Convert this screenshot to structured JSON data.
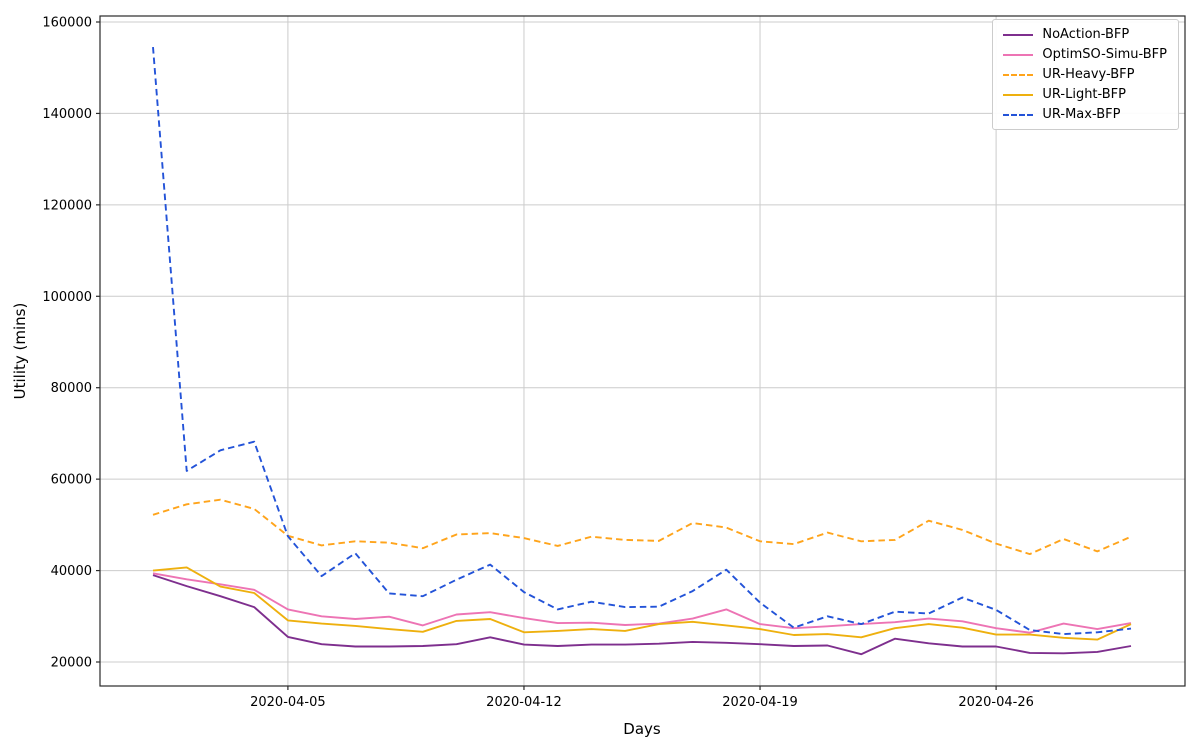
{
  "figure": {
    "xlabel": "Days",
    "ylabel": "Utility (mins)"
  },
  "chart_data": {
    "type": "line",
    "title": "",
    "xlabel": "Days",
    "ylabel": "Utility (mins)",
    "grid": true,
    "legend_position": "upper right",
    "background": "#ffffff",
    "grid_color": "#cccccc",
    "spine_color": "#2a2a2a",
    "ylim": [
      14750,
      161300
    ],
    "y_ticks": [
      20000,
      40000,
      60000,
      80000,
      100000,
      120000,
      140000,
      160000
    ],
    "x_tick_labels": [
      "2020-04-05",
      "2020-04-12",
      "2020-04-19",
      "2020-04-26"
    ],
    "x": [
      "2020-04-01",
      "2020-04-02",
      "2020-04-03",
      "2020-04-04",
      "2020-04-05",
      "2020-04-06",
      "2020-04-07",
      "2020-04-08",
      "2020-04-09",
      "2020-04-10",
      "2020-04-11",
      "2020-04-12",
      "2020-04-13",
      "2020-04-14",
      "2020-04-15",
      "2020-04-16",
      "2020-04-17",
      "2020-04-18",
      "2020-04-19",
      "2020-04-20",
      "2020-04-21",
      "2020-04-22",
      "2020-04-23",
      "2020-04-24",
      "2020-04-25",
      "2020-04-26",
      "2020-04-27",
      "2020-04-28",
      "2020-04-29",
      "2020-04-30"
    ],
    "series": [
      {
        "name": "NoAction-BFP",
        "color": "#7e2f8e",
        "style": "solid",
        "values": [
          39000,
          36600,
          34400,
          32000,
          25500,
          23900,
          23400,
          23400,
          23500,
          23900,
          25400,
          23800,
          23500,
          23800,
          23800,
          24000,
          24400,
          24200,
          23900,
          23500,
          23600,
          21700,
          25100,
          24100,
          23400,
          23400,
          22000,
          21900,
          22200,
          23500
        ]
      },
      {
        "name": "OptimSO-Simu-BFP",
        "color": "#ed74b4",
        "style": "solid",
        "values": [
          39400,
          38100,
          37000,
          35800,
          31500,
          30000,
          29400,
          29900,
          28000,
          30400,
          30900,
          29600,
          28500,
          28600,
          28100,
          28400,
          29500,
          31500,
          28300,
          27400,
          27800,
          28300,
          28700,
          29500,
          28900,
          27400,
          26400,
          28400,
          27200,
          28500
        ]
      },
      {
        "name": "UR-Heavy-BFP",
        "color": "#ffa41b",
        "style": "dashed",
        "values": [
          52200,
          54500,
          55500,
          53500,
          47600,
          45500,
          46400,
          46100,
          44900,
          47900,
          48200,
          47100,
          45400,
          47400,
          46700,
          46500,
          50400,
          49400,
          46400,
          45800,
          48300,
          46400,
          46700,
          50900,
          48900,
          45900,
          43600,
          46900,
          44200,
          47400
        ]
      },
      {
        "name": "UR-Light-BFP",
        "color": "#eeb00e",
        "style": "solid",
        "values": [
          40000,
          40700,
          36500,
          35100,
          29100,
          28400,
          27900,
          27200,
          26600,
          29000,
          29400,
          26500,
          26800,
          27200,
          26800,
          28300,
          28800,
          28000,
          27200,
          25900,
          26100,
          25400,
          27400,
          28300,
          27500,
          26000,
          26000,
          25300,
          24900,
          28300
        ]
      },
      {
        "name": "UR-Max-BFP",
        "color": "#2353d8",
        "style": "dashed",
        "values": [
          154500,
          61800,
          66300,
          68200,
          47500,
          38800,
          43800,
          35000,
          34400,
          38000,
          41300,
          35300,
          31500,
          33200,
          32000,
          32100,
          35500,
          40200,
          33000,
          27500,
          30000,
          28300,
          31000,
          30600,
          34100,
          31400,
          27000,
          26100,
          26500,
          27300
        ]
      }
    ]
  }
}
